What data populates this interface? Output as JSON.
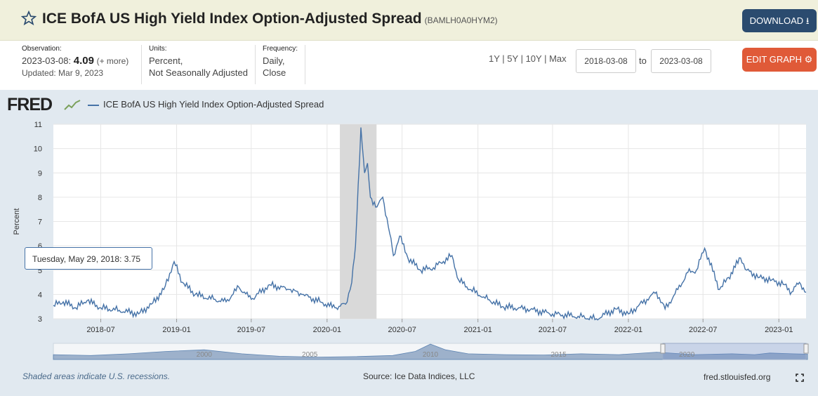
{
  "header": {
    "title": "ICE BofA US High Yield Index Option-Adjusted Spread",
    "series_id": "(BAMLH0A0HYM2)",
    "download_label": "DOWNLOAD"
  },
  "meta": {
    "observation_label": "Observation:",
    "observation_date": "2023-03-08:",
    "observation_value": "4.09",
    "observation_more": "(+ more)",
    "updated": "Updated: Mar 9, 2023",
    "units_label": "Units:",
    "units_line1": "Percent,",
    "units_line2": "Not Seasonally Adjusted",
    "frequency_label": "Frequency:",
    "frequency_line1": "Daily,",
    "frequency_line2": "Close"
  },
  "controls": {
    "ranges": [
      "1Y",
      "5Y",
      "10Y",
      "Max"
    ],
    "start_date": "2018-03-08",
    "to_label": "to",
    "end_date": "2023-03-08",
    "edit_label": "EDIT GRAPH"
  },
  "legend": {
    "logo": "FRED",
    "series_name": "ICE BofA US High Yield Index Option-Adjusted Spread"
  },
  "tooltip": {
    "date": "Tuesday, May 29, 2018:",
    "value": "3.75"
  },
  "footer": {
    "recession_note": "Shaded areas indicate U.S. recessions.",
    "source": "Source: Ice Data Indices, LLC",
    "site": "fred.stlouisfed.org"
  },
  "colors": {
    "line": "#4572a7",
    "recession": "#d9d9d9",
    "download": "#2b4b6f",
    "edit": "#e05a38"
  },
  "chart_data": {
    "type": "line",
    "title": "",
    "xlabel": "",
    "ylabel": "Percent",
    "ylim": [
      3,
      11
    ],
    "yticks": [
      3,
      4,
      5,
      6,
      7,
      8,
      9,
      10,
      11
    ],
    "xlim": [
      "2018-03-08",
      "2023-03-08"
    ],
    "xticks": [
      "2018-07",
      "2019-01",
      "2019-07",
      "2020-01",
      "2020-07",
      "2021-01",
      "2021-07",
      "2022-01",
      "2022-07",
      "2023-01"
    ],
    "grid": true,
    "recession": {
      "start": "2020-02-01",
      "end": "2020-04-30"
    },
    "series": [
      {
        "name": "ICE BofA US High Yield Index Option-Adjusted Spread",
        "points": [
          [
            "2018-03-08",
            3.55
          ],
          [
            "2018-04-01",
            3.7
          ],
          [
            "2018-05-01",
            3.45
          ],
          [
            "2018-05-29",
            3.75
          ],
          [
            "2018-07-01",
            3.45
          ],
          [
            "2018-08-15",
            3.35
          ],
          [
            "2018-10-01",
            3.2
          ],
          [
            "2018-11-01",
            3.6
          ],
          [
            "2018-12-01",
            4.2
          ],
          [
            "2018-12-26",
            5.35
          ],
          [
            "2019-01-15",
            4.5
          ],
          [
            "2019-02-15",
            4.0
          ],
          [
            "2019-04-01",
            3.8
          ],
          [
            "2019-05-01",
            3.7
          ],
          [
            "2019-06-01",
            4.3
          ],
          [
            "2019-07-01",
            3.8
          ],
          [
            "2019-08-15",
            4.4
          ],
          [
            "2019-10-01",
            4.2
          ],
          [
            "2019-11-01",
            4.0
          ],
          [
            "2019-12-15",
            3.7
          ],
          [
            "2020-01-20",
            3.45
          ],
          [
            "2020-02-15",
            3.6
          ],
          [
            "2020-03-01",
            4.5
          ],
          [
            "2020-03-10",
            6.0
          ],
          [
            "2020-03-23",
            10.87
          ],
          [
            "2020-04-01",
            9.0
          ],
          [
            "2020-04-08",
            9.4
          ],
          [
            "2020-04-15",
            8.0
          ],
          [
            "2020-05-01",
            7.6
          ],
          [
            "2020-05-15",
            8.0
          ],
          [
            "2020-06-01",
            6.5
          ],
          [
            "2020-06-10",
            5.6
          ],
          [
            "2020-06-25",
            6.4
          ],
          [
            "2020-07-15",
            5.5
          ],
          [
            "2020-08-15",
            5.0
          ],
          [
            "2020-09-15",
            5.1
          ],
          [
            "2020-10-30",
            5.6
          ],
          [
            "2020-11-15",
            4.6
          ],
          [
            "2020-12-15",
            4.2
          ],
          [
            "2021-01-15",
            3.9
          ],
          [
            "2021-03-01",
            3.5
          ],
          [
            "2021-05-01",
            3.4
          ],
          [
            "2021-07-01",
            3.2
          ],
          [
            "2021-09-01",
            3.1
          ],
          [
            "2021-10-15",
            3.0
          ],
          [
            "2021-12-01",
            3.4
          ],
          [
            "2022-01-01",
            3.2
          ],
          [
            "2022-02-15",
            3.8
          ],
          [
            "2022-03-10",
            4.1
          ],
          [
            "2022-03-31",
            3.4
          ],
          [
            "2022-05-01",
            4.2
          ],
          [
            "2022-05-25",
            4.9
          ],
          [
            "2022-06-15",
            5.0
          ],
          [
            "2022-07-05",
            5.9
          ],
          [
            "2022-08-10",
            4.2
          ],
          [
            "2022-09-01",
            4.7
          ],
          [
            "2022-09-30",
            5.5
          ],
          [
            "2022-10-15",
            5.0
          ],
          [
            "2022-11-15",
            4.7
          ],
          [
            "2022-12-15",
            4.6
          ],
          [
            "2023-01-15",
            4.4
          ],
          [
            "2023-02-01",
            4.1
          ],
          [
            "2023-02-20",
            4.5
          ],
          [
            "2023-03-08",
            4.09
          ]
        ]
      }
    ],
    "navigator": {
      "xtick_labels": [
        "2000",
        "2005",
        "2010",
        "2015",
        "2020"
      ]
    }
  }
}
